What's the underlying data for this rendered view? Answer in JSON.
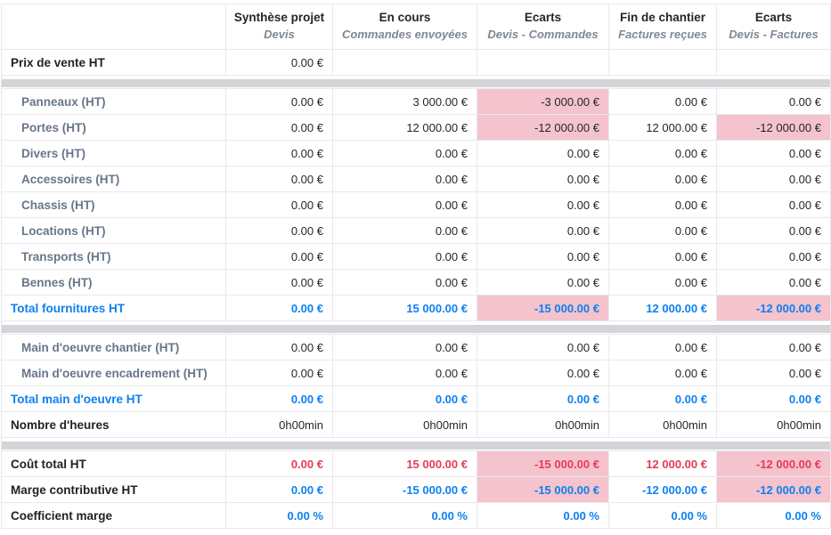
{
  "table": {
    "columns": [
      {
        "title": "",
        "subtitle": ""
      },
      {
        "title": "Synthèse projet",
        "subtitle": "Devis"
      },
      {
        "title": "En cours",
        "subtitle": "Commandes envoyées"
      },
      {
        "title": "Ecarts",
        "subtitle": "Devis - Commandes"
      },
      {
        "title": "Fin de chantier",
        "subtitle": "Factures reçues"
      },
      {
        "title": "Ecarts",
        "subtitle": "Devis - Factures"
      }
    ],
    "rows": [
      {
        "label": "Prix de vente HT",
        "values": [
          "0.00 €",
          "",
          "",
          "",
          ""
        ]
      },
      {
        "label": "Panneaux (HT)",
        "values": [
          "0.00 €",
          "3 000.00 €",
          "-3 000.00 €",
          "0.00 €",
          "0.00 €"
        ]
      },
      {
        "label": "Portes (HT)",
        "values": [
          "0.00 €",
          "12 000.00 €",
          "-12 000.00 €",
          "12 000.00 €",
          "-12 000.00 €"
        ]
      },
      {
        "label": "Divers (HT)",
        "values": [
          "0.00 €",
          "0.00 €",
          "0.00 €",
          "0.00 €",
          "0.00 €"
        ]
      },
      {
        "label": "Accessoires (HT)",
        "values": [
          "0.00 €",
          "0.00 €",
          "0.00 €",
          "0.00 €",
          "0.00 €"
        ]
      },
      {
        "label": "Chassis (HT)",
        "values": [
          "0.00 €",
          "0.00 €",
          "0.00 €",
          "0.00 €",
          "0.00 €"
        ]
      },
      {
        "label": "Locations (HT)",
        "values": [
          "0.00 €",
          "0.00 €",
          "0.00 €",
          "0.00 €",
          "0.00 €"
        ]
      },
      {
        "label": "Transports (HT)",
        "values": [
          "0.00 €",
          "0.00 €",
          "0.00 €",
          "0.00 €",
          "0.00 €"
        ]
      },
      {
        "label": "Bennes (HT)",
        "values": [
          "0.00 €",
          "0.00 €",
          "0.00 €",
          "0.00 €",
          "0.00 €"
        ]
      },
      {
        "label": "Total fournitures HT",
        "values": [
          "0.00 €",
          "15 000.00 €",
          "-15 000.00 €",
          "12 000.00 €",
          "-12 000.00 €"
        ]
      },
      {
        "label": "Main d'oeuvre chantier (HT)",
        "values": [
          "0.00 €",
          "0.00 €",
          "0.00 €",
          "0.00 €",
          "0.00 €"
        ]
      },
      {
        "label": "Main d'oeuvre encadrement (HT)",
        "values": [
          "0.00 €",
          "0.00 €",
          "0.00 €",
          "0.00 €",
          "0.00 €"
        ]
      },
      {
        "label": "Total main d'oeuvre HT",
        "values": [
          "0.00 €",
          "0.00 €",
          "0.00 €",
          "0.00 €",
          "0.00 €"
        ]
      },
      {
        "label": "Nombre d'heures",
        "values": [
          "0h00min",
          "0h00min",
          "0h00min",
          "0h00min",
          "0h00min"
        ]
      },
      {
        "label": "Coût total HT",
        "values": [
          "0.00 €",
          "15 000.00 €",
          "-15 000.00 €",
          "12 000.00 €",
          "-12 000.00 €"
        ]
      },
      {
        "label": "Marge contributive HT",
        "values": [
          "0.00 €",
          "-15 000.00 €",
          "-15 000.00 €",
          "-12 000.00 €",
          "-12 000.00 €"
        ]
      },
      {
        "label": "Coefficient marge",
        "values": [
          "0.00 %",
          "0.00 %",
          "0.00 %",
          "0.00 %",
          "0.00 %"
        ]
      }
    ]
  },
  "colors": {
    "accent_blue": "#0c80f2",
    "negative_red": "#e73b55",
    "highlight_pink": "#f4c3cd",
    "label_gray": "#68758a",
    "separator_gray": "#d3d5d9"
  }
}
